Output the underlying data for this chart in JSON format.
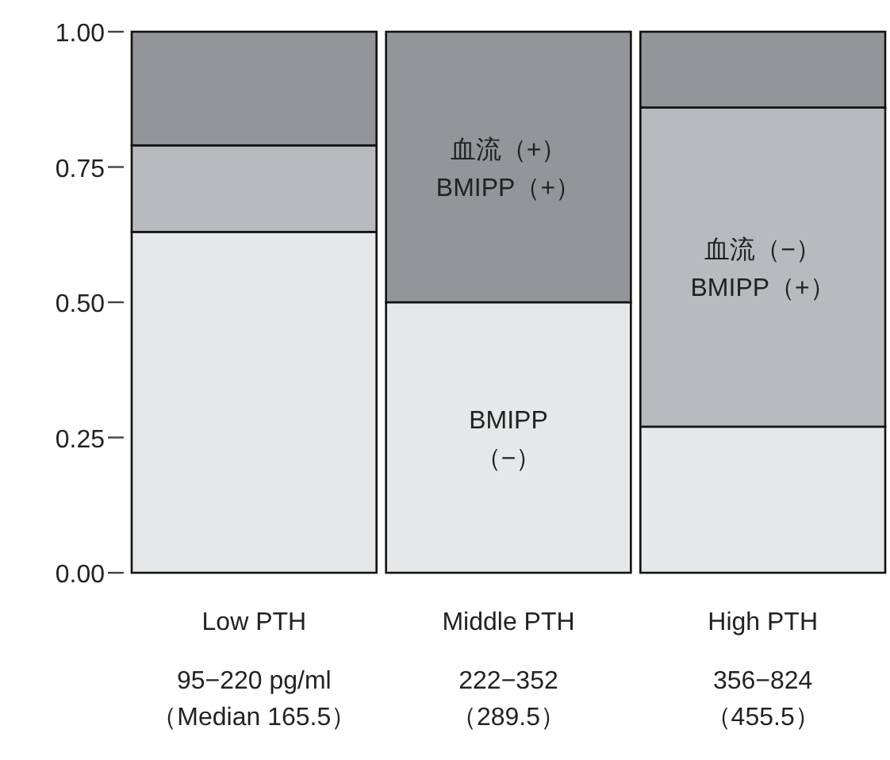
{
  "chart_data": {
    "type": "bar",
    "stacked": true,
    "categories": [
      "Low PTH\n\n95−220 pg/ml\n（Median 165.5）",
      "Middle PTH\n\n222−352\n（289.5）",
      "High PTH\n\n356−824\n（455.5）"
    ],
    "series": [
      {
        "name": "BMIPP\n（−）",
        "color": "#e6e7e8",
        "values": [
          0.63,
          0.5,
          0.27
        ]
      },
      {
        "name": "血流（−）\nBMIPP（+）",
        "color": "#b9babd",
        "values": [
          0.16,
          0,
          0.59
        ]
      },
      {
        "name": "血流（+）\nBMIPP（+）",
        "color": "#939598",
        "values": [
          0.21,
          0.5,
          0.14
        ]
      }
    ],
    "ylim": [
      0,
      1
    ],
    "yticks": [
      {
        "value": 0,
        "label": "0.00"
      },
      {
        "value": 0.25,
        "label": "0.25"
      },
      {
        "value": 0.5,
        "label": "0.50"
      },
      {
        "value": 0.75,
        "label": "0.75"
      },
      {
        "value": 1,
        "label": "1.00"
      }
    ],
    "grid": false
  }
}
